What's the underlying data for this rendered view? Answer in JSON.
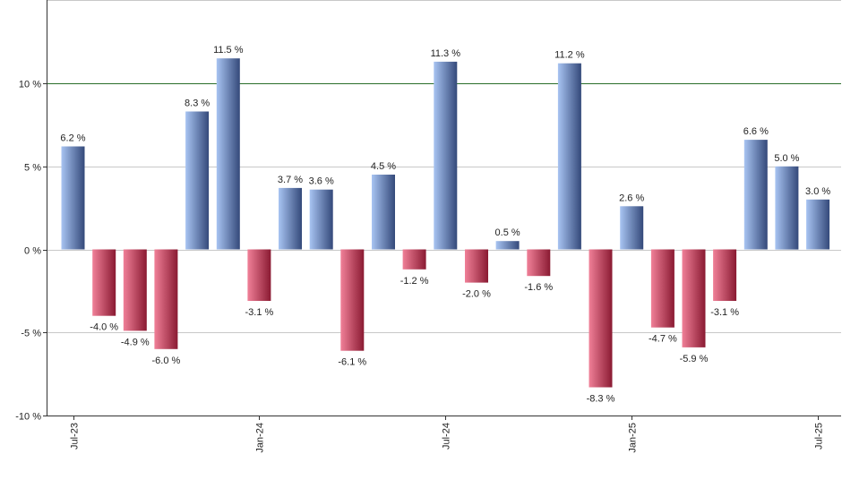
{
  "chart_data": {
    "type": "bar",
    "categories": [
      "Jul-23",
      "Aug-23",
      "Sep-23",
      "Oct-23",
      "Nov-23",
      "Dec-23",
      "Jan-24",
      "Feb-24",
      "Mar-24",
      "Apr-24",
      "May-24",
      "Jun-24",
      "Jul-24",
      "Aug-24",
      "Sep-24",
      "Oct-24",
      "Nov-24",
      "Dec-24",
      "Jan-25",
      "Feb-25",
      "Mar-25",
      "Apr-25",
      "May-25",
      "Jun-25",
      "Jul-25"
    ],
    "values": [
      6.2,
      -4.0,
      -4.9,
      -6.0,
      8.3,
      11.5,
      -3.1,
      3.7,
      3.6,
      -6.1,
      4.5,
      -1.2,
      11.3,
      -2.0,
      0.5,
      -1.6,
      11.2,
      -8.3,
      2.6,
      -4.7,
      -5.9,
      -3.1,
      6.6,
      5.0,
      3.0
    ],
    "value_labels": [
      "6.2 %",
      "-4.0 %",
      "-4.9 %",
      "-6.0 %",
      "8.3 %",
      "11.5 %",
      "-3.1 %",
      "3.7 %",
      "3.6 %",
      "-6.1 %",
      "4.5 %",
      "-1.2 %",
      "11.3 %",
      "-2.0 %",
      "0.5 %",
      "-1.6 %",
      "11.2 %",
      "-8.3 %",
      "2.6 %",
      "-4.7 %",
      "-5.9 %",
      "-3.1 %",
      "6.6 %",
      "5.0 %",
      "3.0 %"
    ],
    "x_tick_labels": [
      {
        "index": 0,
        "label": "Jul-23"
      },
      {
        "index": 6,
        "label": "Jan-24"
      },
      {
        "index": 12,
        "label": "Jul-24"
      },
      {
        "index": 18,
        "label": "Jan-25"
      },
      {
        "index": 24,
        "label": "Jul-25"
      }
    ],
    "y_ticks": [
      10,
      5,
      0,
      -5,
      -10
    ],
    "y_tick_labels": [
      "10 %",
      "5 %",
      "0 %",
      "-5 %",
      "-10 %"
    ],
    "ylim": [
      -10,
      15
    ],
    "reference_line": 10,
    "title": "",
    "xlabel": "",
    "ylabel": "",
    "grid": true,
    "colors": {
      "positive_light": "#a8c4f2",
      "positive_dark": "#34497a",
      "negative_light": "#f08098",
      "negative_dark": "#8a1a32",
      "reference_line": "#2a6e2a",
      "grid": "#c8c8c8",
      "axis": "#333333"
    }
  }
}
